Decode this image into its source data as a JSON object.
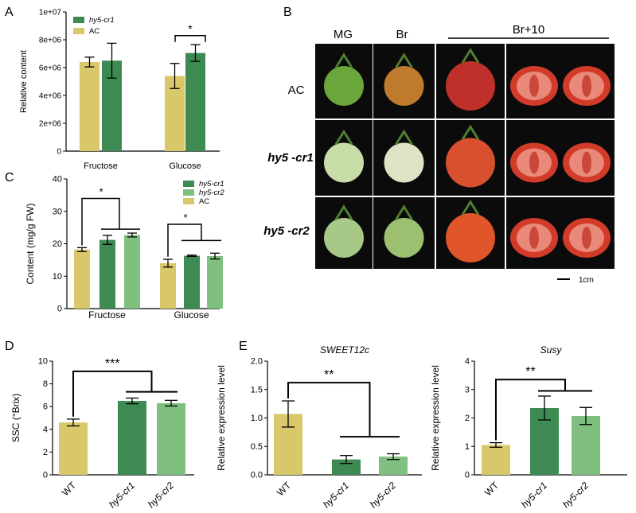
{
  "colors": {
    "ac": "#d8c86a",
    "cr1": "#3d8a52",
    "cr2": "#7fbf7f",
    "axis": "#000000",
    "photo_bg": "#0b0b0b"
  },
  "panel_letters": [
    "A",
    "B",
    "C",
    "D",
    "E"
  ],
  "photo_panel": {
    "stage_labels": [
      "MG",
      "Br",
      "Br+10"
    ],
    "row_labels": [
      "AC",
      "hy5 -cr1",
      "hy5 -cr2"
    ],
    "scale_label": "1cm"
  },
  "chart_data": [
    {
      "id": "A",
      "type": "bar",
      "ylabel": "Relative content",
      "ylim": [
        0,
        10000000
      ],
      "yticks": [
        "0",
        "2e+06",
        "4e+06",
        "6e+06",
        "8e+06",
        "1e+07"
      ],
      "categories": [
        "Fructose",
        "Glucose"
      ],
      "series": [
        {
          "name": "AC",
          "color_key": "ac",
          "values": [
            6400000,
            5400000
          ],
          "errors": [
            350000,
            900000
          ]
        },
        {
          "name": "hy5-cr1",
          "color_key": "cr1",
          "values": [
            6500000,
            7050000
          ],
          "errors": [
            1250000,
            600000
          ]
        }
      ],
      "legend": [
        "hy5-cr1",
        "AC"
      ],
      "significance": [
        "*"
      ],
      "grid": false
    },
    {
      "id": "C",
      "type": "bar",
      "ylabel": "Content (mg/g FW)",
      "ylim": [
        0,
        40
      ],
      "yticks": [
        "0",
        "10",
        "20",
        "30",
        "40"
      ],
      "categories": [
        "Fructose",
        "Glucose"
      ],
      "series": [
        {
          "name": "AC",
          "color_key": "ac",
          "values": [
            18.2,
            14.0
          ],
          "errors": [
            0.6,
            1.2
          ]
        },
        {
          "name": "hy5-cr1",
          "color_key": "cr1",
          "values": [
            21.2,
            16.3
          ],
          "errors": [
            1.4,
            0.2
          ]
        },
        {
          "name": "hy5-cr2",
          "color_key": "cr2",
          "values": [
            22.7,
            16.2
          ],
          "errors": [
            0.6,
            0.9
          ]
        }
      ],
      "legend": [
        "hy5-cr1",
        "hy5-cr2",
        "AC"
      ],
      "significance": [
        "*",
        "*"
      ],
      "grid": false
    },
    {
      "id": "D",
      "type": "bar",
      "ylabel": "SSC (°Brix)",
      "ylim": [
        0,
        10
      ],
      "yticks": [
        "0",
        "2",
        "4",
        "6",
        "8",
        "10"
      ],
      "categories": [
        "WT",
        "hy5-cr1",
        "hy5-cr2"
      ],
      "values": [
        4.6,
        6.5,
        6.3
      ],
      "errors": [
        0.3,
        0.25,
        0.25
      ],
      "color_keys": [
        "ac",
        "cr1",
        "cr2"
      ],
      "significance": [
        "***"
      ],
      "grid": false
    },
    {
      "id": "E1",
      "type": "bar",
      "title": "SWEET12c",
      "ylabel": "Relative expression level",
      "ylim": [
        0,
        2.0
      ],
      "yticks": [
        "0.0",
        "0.5",
        "1.0",
        "1.5",
        "2.0"
      ],
      "categories": [
        "WT",
        "hy5-cr1",
        "hy5-cr2"
      ],
      "values": [
        1.07,
        0.27,
        0.32
      ],
      "errors": [
        0.23,
        0.07,
        0.05
      ],
      "color_keys": [
        "ac",
        "cr1",
        "cr2"
      ],
      "significance": [
        "**"
      ],
      "grid": false
    },
    {
      "id": "E2",
      "type": "bar",
      "title": "Susy",
      "ylabel": "Relative expression level",
      "ylim": [
        0,
        4
      ],
      "yticks": [
        "0",
        "1",
        "2",
        "3",
        "4"
      ],
      "categories": [
        "WT",
        "hy5-cr1",
        "hy5-cr2"
      ],
      "values": [
        1.05,
        2.35,
        2.07
      ],
      "errors": [
        0.08,
        0.42,
        0.3
      ],
      "color_keys": [
        "ac",
        "cr1",
        "cr2"
      ],
      "significance": [
        "**"
      ],
      "grid": false
    }
  ]
}
